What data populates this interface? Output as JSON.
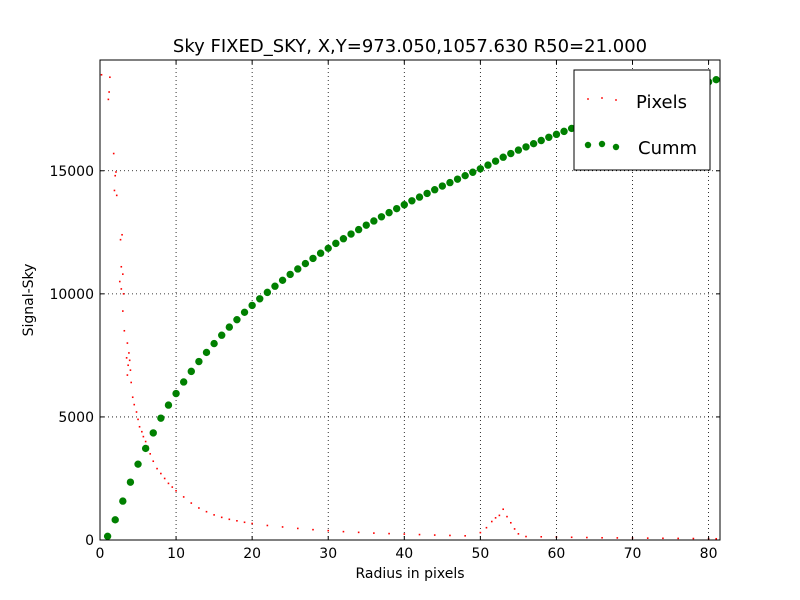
{
  "chart_data": {
    "type": "scatter",
    "title": "Sky FIXED_SKY, X,Y=973.050,1057.630 R50=21.000",
    "xlabel": "Radius in pixels",
    "ylabel": "Signal-Sky",
    "xlim": [
      0,
      81.5
    ],
    "ylim": [
      0,
      19500
    ],
    "xticks": [
      0,
      10,
      20,
      30,
      40,
      50,
      60,
      70,
      80
    ],
    "yticks": [
      0,
      5000,
      10000,
      15000
    ],
    "grid": true,
    "legend_position": "top-right",
    "series": [
      {
        "name": "Pixels",
        "color": "#ff0000",
        "marker": "dot",
        "points": [
          [
            0.2,
            18900
          ],
          [
            1.3,
            18800
          ],
          [
            1.2,
            18200
          ],
          [
            1.1,
            17900
          ],
          [
            1.8,
            15700
          ],
          [
            2.1,
            14950
          ],
          [
            2.0,
            14800
          ],
          [
            1.9,
            14200
          ],
          [
            2.2,
            14000
          ],
          [
            2.9,
            12400
          ],
          [
            2.7,
            12200
          ],
          [
            2.8,
            11100
          ],
          [
            3.0,
            10800
          ],
          [
            2.6,
            10500
          ],
          [
            2.8,
            10200
          ],
          [
            3.1,
            10000
          ],
          [
            3.0,
            9300
          ],
          [
            3.2,
            8500
          ],
          [
            3.6,
            8000
          ],
          [
            3.8,
            7600
          ],
          [
            3.5,
            7400
          ],
          [
            3.9,
            7300
          ],
          [
            3.7,
            7100
          ],
          [
            4.0,
            6900
          ],
          [
            3.6,
            6700
          ],
          [
            4.1,
            6400
          ],
          [
            4.3,
            5800
          ],
          [
            4.5,
            5500
          ],
          [
            4.8,
            5200
          ],
          [
            5.0,
            4900
          ],
          [
            5.2,
            4600
          ],
          [
            5.5,
            4400
          ],
          [
            5.7,
            4200
          ],
          [
            6.0,
            4000
          ],
          [
            6.3,
            3800
          ],
          [
            6.6,
            3500
          ],
          [
            7.0,
            3200
          ],
          [
            7.5,
            2900
          ],
          [
            8.0,
            2700
          ],
          [
            8.5,
            2500
          ],
          [
            9.0,
            2300
          ],
          [
            9.5,
            2150
          ],
          [
            10,
            2000
          ],
          [
            11,
            1750
          ],
          [
            12,
            1500
          ],
          [
            13,
            1300
          ],
          [
            14,
            1150
          ],
          [
            15,
            1020
          ],
          [
            16,
            920
          ],
          [
            17,
            840
          ],
          [
            18,
            780
          ],
          [
            19,
            720
          ],
          [
            20,
            670
          ],
          [
            22,
            590
          ],
          [
            24,
            530
          ],
          [
            26,
            470
          ],
          [
            28,
            420
          ],
          [
            30,
            380
          ],
          [
            32,
            340
          ],
          [
            34,
            310
          ],
          [
            36,
            280
          ],
          [
            38,
            260
          ],
          [
            40,
            240
          ],
          [
            42,
            220
          ],
          [
            44,
            200
          ],
          [
            46,
            185
          ],
          [
            48,
            170
          ],
          [
            50,
            300
          ],
          [
            50.8,
            500
          ],
          [
            51.5,
            750
          ],
          [
            52.0,
            900
          ],
          [
            52.5,
            1000
          ],
          [
            53.0,
            1250
          ],
          [
            53.5,
            950
          ],
          [
            54.0,
            700
          ],
          [
            54.5,
            450
          ],
          [
            55,
            250
          ],
          [
            56,
            140
          ],
          [
            58,
            130
          ],
          [
            60,
            120
          ],
          [
            62,
            110
          ],
          [
            64,
            100
          ],
          [
            66,
            90
          ],
          [
            68,
            85
          ],
          [
            70,
            80
          ],
          [
            72,
            75
          ],
          [
            74,
            70
          ],
          [
            76,
            65
          ],
          [
            78,
            60
          ],
          [
            80,
            55
          ],
          [
            81,
            50
          ]
        ]
      },
      {
        "name": "Cumm",
        "color": "#008000",
        "marker": "circle",
        "points": [
          [
            1,
            150
          ],
          [
            2,
            820
          ],
          [
            3,
            1580
          ],
          [
            4,
            2350
          ],
          [
            5,
            3080
          ],
          [
            6,
            3720
          ],
          [
            7,
            4350
          ],
          [
            8,
            4950
          ],
          [
            9,
            5480
          ],
          [
            10,
            5950
          ],
          [
            11,
            6420
          ],
          [
            12,
            6850
          ],
          [
            13,
            7250
          ],
          [
            14,
            7620
          ],
          [
            15,
            7980
          ],
          [
            16,
            8320
          ],
          [
            17,
            8650
          ],
          [
            18,
            8950
          ],
          [
            19,
            9250
          ],
          [
            20,
            9530
          ],
          [
            21,
            9800
          ],
          [
            22,
            10060
          ],
          [
            23,
            10310
          ],
          [
            24,
            10550
          ],
          [
            25,
            10790
          ],
          [
            26,
            11010
          ],
          [
            27,
            11230
          ],
          [
            28,
            11440
          ],
          [
            29,
            11650
          ],
          [
            30,
            11850
          ],
          [
            31,
            12050
          ],
          [
            32,
            12240
          ],
          [
            33,
            12430
          ],
          [
            34,
            12610
          ],
          [
            35,
            12790
          ],
          [
            36,
            12960
          ],
          [
            37,
            13130
          ],
          [
            38,
            13300
          ],
          [
            39,
            13460
          ],
          [
            40,
            13620
          ],
          [
            41,
            13780
          ],
          [
            42,
            13930
          ],
          [
            43,
            14080
          ],
          [
            44,
            14230
          ],
          [
            45,
            14380
          ],
          [
            46,
            14520
          ],
          [
            47,
            14660
          ],
          [
            48,
            14800
          ],
          [
            49,
            14940
          ],
          [
            50,
            15080
          ],
          [
            51,
            15230
          ],
          [
            52,
            15390
          ],
          [
            53,
            15550
          ],
          [
            54,
            15700
          ],
          [
            55,
            15840
          ],
          [
            56,
            15970
          ],
          [
            57,
            16100
          ],
          [
            58,
            16230
          ],
          [
            59,
            16360
          ],
          [
            60,
            16480
          ],
          [
            61,
            16600
          ],
          [
            62,
            16720
          ],
          [
            63,
            16840
          ],
          [
            64,
            16960
          ],
          [
            65,
            17080
          ],
          [
            66,
            17190
          ],
          [
            67,
            17300
          ],
          [
            68,
            17410
          ],
          [
            69,
            17520
          ],
          [
            70,
            17630
          ],
          [
            71,
            17740
          ],
          [
            72,
            17840
          ],
          [
            73,
            17940
          ],
          [
            74,
            18040
          ],
          [
            75,
            18140
          ],
          [
            76,
            18240
          ],
          [
            77,
            18340
          ],
          [
            78,
            18430
          ],
          [
            79,
            18520
          ],
          [
            80,
            18610
          ],
          [
            81,
            18700
          ]
        ]
      }
    ]
  }
}
